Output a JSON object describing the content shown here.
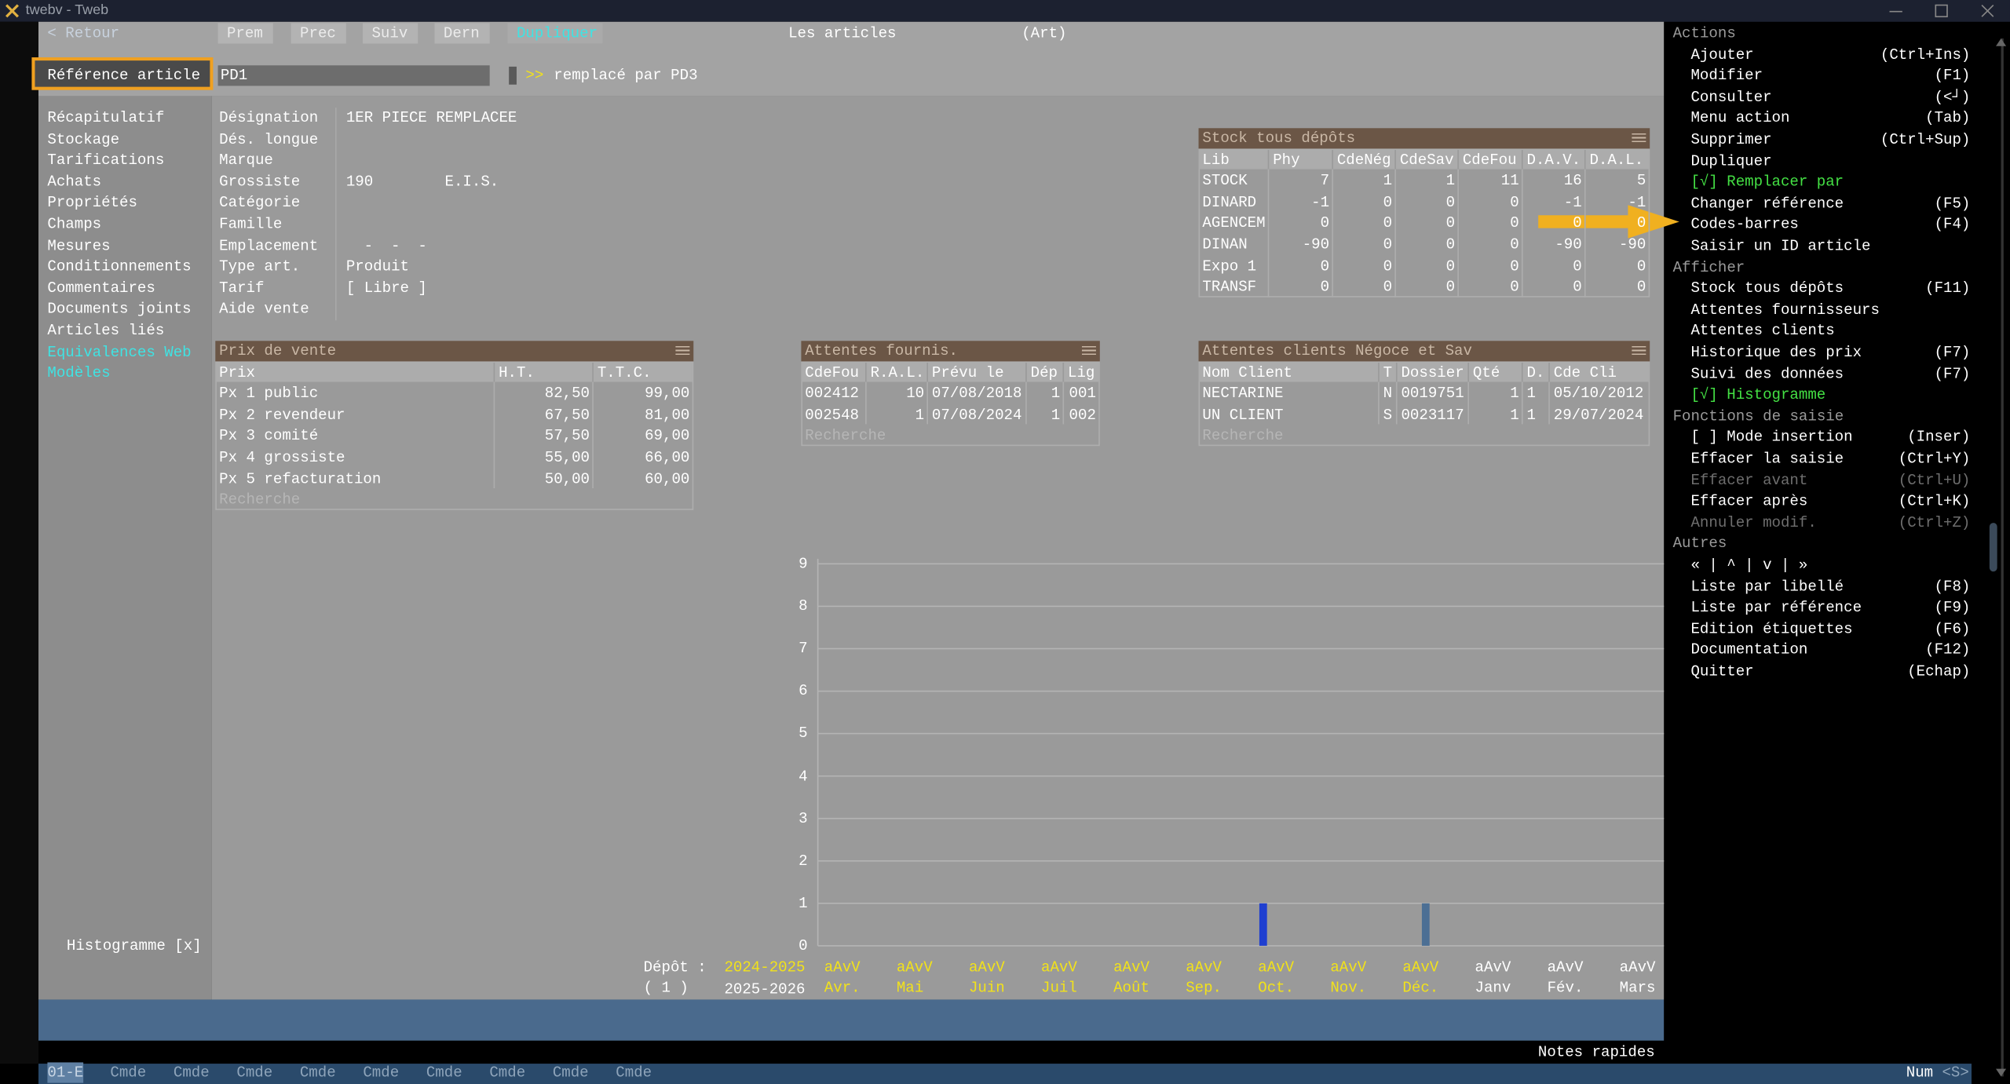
{
  "window": {
    "title": "twebv - Tweb"
  },
  "toolbar": {
    "back": "< Retour",
    "buttons": [
      "Prem",
      "Prec",
      "Suiv",
      "Dern",
      "Dupliquer"
    ],
    "screen_title": "Les articles",
    "screen_code": "(Art)"
  },
  "reference": {
    "label": "Référence article",
    "value": "PD1",
    "arrow": ">>",
    "replaced": "remplacé par PD3"
  },
  "nav": [
    {
      "label": "Récapitulatif"
    },
    {
      "label": "Stockage"
    },
    {
      "label": "Tarifications"
    },
    {
      "label": "Achats"
    },
    {
      "label": "Propriétés"
    },
    {
      "label": "Champs"
    },
    {
      "label": "Mesures"
    },
    {
      "label": "Conditionnements"
    },
    {
      "label": "Commentaires"
    },
    {
      "label": "Documents joints"
    },
    {
      "label": "Articles liés"
    },
    {
      "label": "Equivalences Web",
      "color": "#3fe3e3"
    },
    {
      "label": "Modèles",
      "color": "#3fe3e3"
    }
  ],
  "fields": [
    {
      "label": "Désignation",
      "value": "1ER PIECE REMPLACEE"
    },
    {
      "label": "Dés. longue"
    },
    {
      "label": "Marque"
    },
    {
      "label": "Grossiste",
      "value": "190",
      "extra": "E.I.S."
    },
    {
      "label": "Catégorie"
    },
    {
      "label": "Famille"
    },
    {
      "label": "Emplacement",
      "value": "-  -  -"
    },
    {
      "label": "Type art.",
      "value": "Produit"
    },
    {
      "label": "Tarif",
      "value": "[ Libre ]"
    },
    {
      "label": "Aide vente"
    }
  ],
  "stock": {
    "title": "Stock tous dépôts",
    "columns": [
      "Lib",
      "Phy",
      "CdeNég",
      "CdeSav",
      "CdeFou",
      "D.A.V.",
      "D.A.L."
    ],
    "rows": [
      [
        "STOCK",
        7,
        1,
        1,
        11,
        16,
        5
      ],
      [
        "DINARD",
        -1,
        0,
        0,
        0,
        -1,
        -1
      ],
      [
        "AGENCEM",
        0,
        0,
        0,
        0,
        0,
        0
      ],
      [
        "DINAN",
        -90,
        0,
        0,
        0,
        -90,
        -90
      ],
      [
        "Expo 1",
        0,
        0,
        0,
        0,
        0,
        0
      ],
      [
        "TRANSF",
        0,
        0,
        0,
        0,
        0,
        0
      ]
    ]
  },
  "prices": {
    "title": "Prix de vente",
    "columns": [
      "Prix",
      "H.T.",
      "T.T.C."
    ],
    "rows": [
      [
        "Px 1 public",
        "82,50",
        "99,00"
      ],
      [
        "Px 2 revendeur",
        "67,50",
        "81,00"
      ],
      [
        "Px 3 comité",
        "57,50",
        "69,00"
      ],
      [
        "Px 4 grossiste",
        "55,00",
        "66,00"
      ],
      [
        "Px 5 refacturation",
        "50,00",
        "60,00"
      ]
    ],
    "search": "Recherche"
  },
  "supplier_waits": {
    "title": "Attentes fournis.",
    "columns": [
      "CdeFou",
      "R.A.L.",
      "Prévu le",
      "Dép",
      "Lig"
    ],
    "rows": [
      [
        "002412",
        10,
        "07/08/2018",
        1,
        "001"
      ],
      [
        "002548",
        1,
        "07/08/2024",
        1,
        "002"
      ]
    ],
    "search": "Recherche"
  },
  "client_waits": {
    "title": "Attentes clients Négoce et Sav",
    "columns": [
      "Nom Client",
      "T",
      "Dossier",
      "Qté",
      "D.",
      "Cde Cli"
    ],
    "rows": [
      [
        "NECTARINE",
        "N",
        "0019751",
        1,
        1,
        "05/10/2012"
      ],
      [
        "UN CLIENT",
        "S",
        "0023117",
        1,
        1,
        "29/07/2024"
      ]
    ],
    "search": "Recherche"
  },
  "histogram": {
    "toggle": "Histogramme [x]",
    "depot_label": "Dépôt :",
    "depot_number": "( 1 )",
    "periods": [
      {
        "label": "2024-2025",
        "color": "#f2e21a"
      },
      {
        "label": "2025-2026",
        "color": "#ffffff"
      }
    ],
    "ylim": [
      0,
      9
    ],
    "yticks": [
      0,
      1,
      2,
      3,
      4,
      5,
      6,
      7,
      8,
      9
    ],
    "grid": true,
    "categories": [
      {
        "code": "aAvV",
        "month": "Avr.",
        "color": "#f2e21a"
      },
      {
        "code": "aAvV",
        "month": "Mai",
        "color": "#f2e21a"
      },
      {
        "code": "aAvV",
        "month": "Juin",
        "color": "#f2e21a"
      },
      {
        "code": "aAvV",
        "month": "Juil",
        "color": "#f2e21a"
      },
      {
        "code": "aAvV",
        "month": "Août",
        "color": "#f2e21a"
      },
      {
        "code": "aAvV",
        "month": "Sep.",
        "color": "#f2e21a"
      },
      {
        "code": "aAvV",
        "month": "Oct.",
        "color": "#f2e21a"
      },
      {
        "code": "aAvV",
        "month": "Nov.",
        "color": "#f2e21a"
      },
      {
        "code": "aAvV",
        "month": "Déc.",
        "color": "#f2e21a"
      },
      {
        "code": "aAvV",
        "month": "Janv",
        "color": "#ffffff"
      },
      {
        "code": "aAvV",
        "month": "Fév.",
        "color": "#ffffff"
      },
      {
        "code": "aAvV",
        "month": "Mars",
        "color": "#ffffff"
      }
    ],
    "series": [
      {
        "color": "#1f3fd0",
        "values": [
          0,
          0,
          0,
          0,
          0,
          0,
          1,
          0,
          0,
          0,
          0,
          0
        ]
      },
      {
        "color": "#4c6f94",
        "values": [
          0,
          0,
          0,
          0,
          0,
          0,
          0,
          0,
          1,
          0,
          0,
          0
        ]
      }
    ]
  },
  "actions": [
    {
      "title": "Actions",
      "items": [
        {
          "label": "Ajouter",
          "key": "(Ctrl+Ins)"
        },
        {
          "label": "Modifier",
          "key": "(F1)"
        },
        {
          "label": "Consulter",
          "key": "(<┘)"
        },
        {
          "label": "Menu action",
          "key": "(Tab)"
        },
        {
          "label": "Supprimer",
          "key": "(Ctrl+Sup)"
        },
        {
          "label": "Dupliquer"
        },
        {
          "label": "[√] Remplacer par",
          "state": "checked"
        },
        {
          "label": "Changer référence",
          "key": "(F5)"
        },
        {
          "label": "Codes-barres",
          "key": "(F4)"
        },
        {
          "label": "Saisir un ID article"
        }
      ]
    },
    {
      "title": "Afficher",
      "items": [
        {
          "label": "Stock tous dépôts",
          "key": "(F11)"
        },
        {
          "label": "Attentes fournisseurs"
        },
        {
          "label": "Attentes clients"
        },
        {
          "label": "Historique des prix",
          "key": "(F7)"
        },
        {
          "label": "Suivi des données",
          "key": "(F7)"
        },
        {
          "label": "[√] Histogramme",
          "state": "checked"
        }
      ]
    },
    {
      "title": "Fonctions de saisie",
      "items": [
        {
          "label": "[ ] Mode insertion",
          "key": "(Inser)"
        },
        {
          "label": "Effacer la saisie",
          "key": "(Ctrl+Y)"
        },
        {
          "label": "Effacer avant",
          "key": "(Ctrl+U)",
          "state": "disabled"
        },
        {
          "label": "Effacer après",
          "key": "(Ctrl+K)"
        },
        {
          "label": "Annuler modif.",
          "key": "(Ctrl+Z)",
          "state": "disabled"
        }
      ]
    },
    {
      "title": "Autres",
      "items": [
        {
          "label": "« | ^ | v | »"
        },
        {
          "label": "Liste par libellé",
          "key": "(F8)"
        },
        {
          "label": "Liste par référence",
          "key": "(F9)"
        },
        {
          "label": "Edition étiquettes",
          "key": "(F6)"
        },
        {
          "label": "Documentation",
          "key": "(F12)"
        },
        {
          "label": "Quitter",
          "key": "(Echap)"
        }
      ]
    }
  ],
  "status": {
    "notes": "Notes rapides",
    "tabs": [
      "01-E",
      "Cmde",
      "Cmde",
      "Cmde",
      "Cmde",
      "Cmde",
      "Cmde",
      "Cmde",
      "Cmde",
      "Cmde"
    ],
    "num": "Num",
    "indicator": "<S>"
  }
}
